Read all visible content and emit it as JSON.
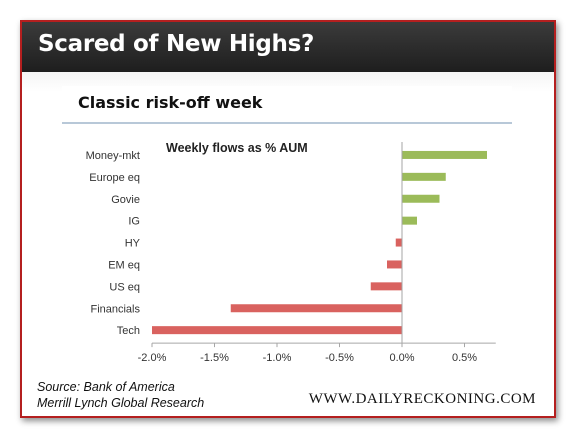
{
  "header": {
    "title": "Scared of New Highs?"
  },
  "chart_data": {
    "type": "bar",
    "orientation": "horizontal",
    "title": "Classic risk-off week",
    "annotation": "Weekly flows as % AUM",
    "categories": [
      "Money-mkt",
      "Europe eq",
      "Govie",
      "IG",
      "HY",
      "EM eq",
      "US eq",
      "Financials",
      "Tech"
    ],
    "values": [
      0.68,
      0.35,
      0.3,
      0.12,
      -0.05,
      -0.12,
      -0.25,
      -1.37,
      -2.0
    ],
    "xlim": [
      -2.0,
      0.75
    ],
    "xticks": [
      -2.0,
      -1.5,
      -1.0,
      -0.5,
      0.0,
      0.5
    ],
    "xtick_labels": [
      "-2.0%",
      "-1.5%",
      "-1.0%",
      "-0.5%",
      "0.0%",
      "0.5%"
    ],
    "xlabel": "",
    "ylabel": "",
    "grid": false,
    "colors": {
      "positive": "#9bbb59",
      "negative": "#d9625f",
      "axis": "#a6a6a6"
    }
  },
  "footer": {
    "source_line1": "Source: Bank of America",
    "source_line2": "Merrill Lynch Global Research",
    "brand": "WWW.DAILYRECKONING.COM"
  }
}
